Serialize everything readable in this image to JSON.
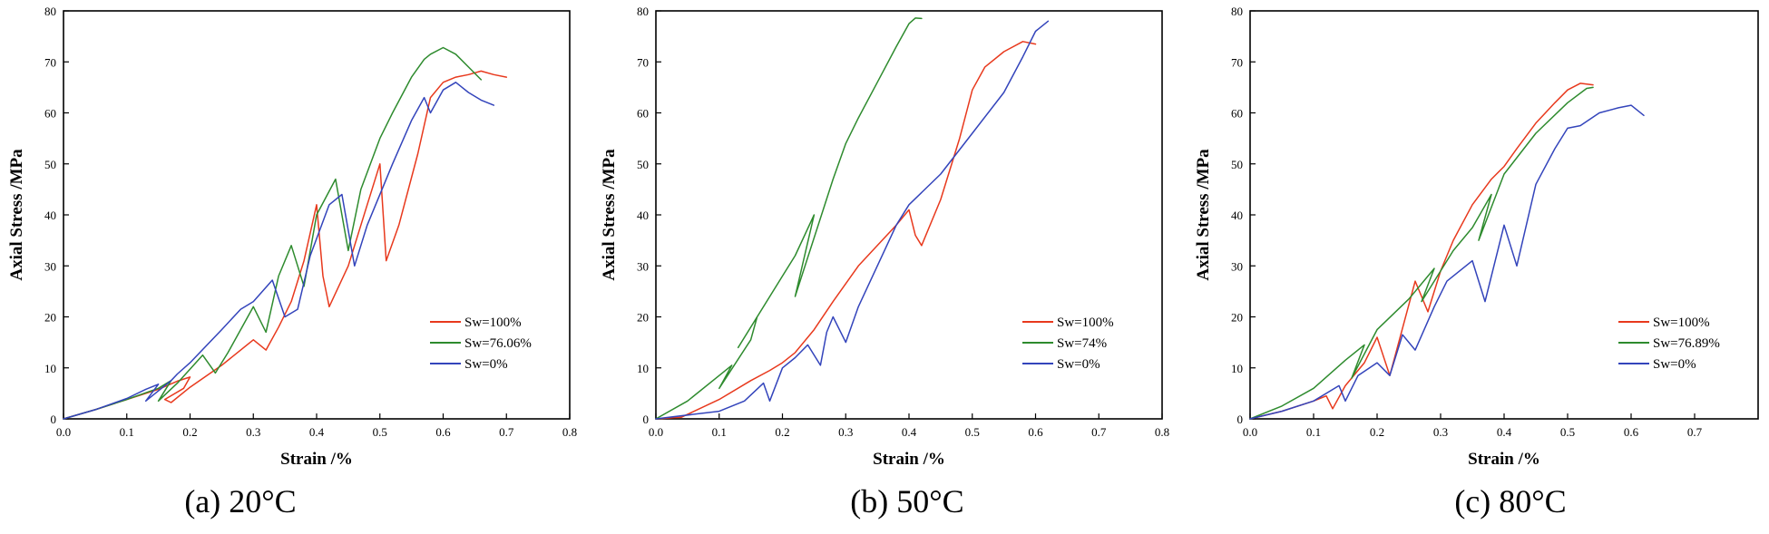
{
  "colors": {
    "red": "#E8391D",
    "green": "#2E8B2E",
    "blue": "#3344BB",
    "axis": "#000000"
  },
  "chart_data": [
    {
      "type": "line",
      "caption": "(a) 20°C",
      "xlabel": "Strain /%",
      "ylabel": "Axial Stress /MPa",
      "xlim": [
        0,
        0.8
      ],
      "ylim": [
        0,
        80
      ],
      "xticks": [
        "0.0",
        "0.1",
        "0.2",
        "0.3",
        "0.4",
        "0.5",
        "0.6",
        "0.7",
        "0.8"
      ],
      "yticks": [
        "0",
        "10",
        "20",
        "30",
        "40",
        "50",
        "60",
        "70",
        "80"
      ],
      "legend_position": "bottom-right",
      "series": [
        {
          "name": "Sw=100%",
          "color": "red",
          "x": [
            0,
            0.05,
            0.1,
            0.15,
            0.18,
            0.2,
            0.19,
            0.16,
            0.17,
            0.2,
            0.25,
            0.3,
            0.32,
            0.34,
            0.36,
            0.38,
            0.4,
            0.41,
            0.42,
            0.45,
            0.48,
            0.5,
            0.51,
            0.53,
            0.56,
            0.58,
            0.6,
            0.62,
            0.64,
            0.66,
            0.68,
            0.7
          ],
          "y": [
            0,
            1.8,
            3.8,
            5.8,
            7.4,
            8.2,
            6,
            3.8,
            3.2,
            6.2,
            10.5,
            15.5,
            13.5,
            18,
            23,
            31,
            42,
            28,
            22,
            30,
            42,
            50,
            31,
            38,
            52,
            63,
            66,
            67,
            67.5,
            68.2,
            67.5,
            67
          ]
        },
        {
          "name": "Sw=76.06%",
          "color": "green",
          "x": [
            0,
            0.05,
            0.1,
            0.15,
            0.17,
            0.15,
            0.18,
            0.22,
            0.24,
            0.26,
            0.3,
            0.32,
            0.34,
            0.36,
            0.38,
            0.4,
            0.43,
            0.45,
            0.47,
            0.5,
            0.52,
            0.55,
            0.57,
            0.58,
            0.6,
            0.62,
            0.64,
            0.66
          ],
          "y": [
            0,
            1.8,
            3.8,
            6,
            7.5,
            3.5,
            7,
            12.5,
            9,
            13,
            22,
            17,
            28,
            34,
            26,
            40,
            47,
            33,
            45,
            55,
            60,
            67,
            70.5,
            71.5,
            72.8,
            71.5,
            69,
            66.5
          ]
        },
        {
          "name": "Sw=0%",
          "color": "blue",
          "x": [
            0,
            0.05,
            0.1,
            0.13,
            0.15,
            0.13,
            0.17,
            0.18,
            0.2,
            0.25,
            0.28,
            0.3,
            0.33,
            0.35,
            0.37,
            0.39,
            0.42,
            0.44,
            0.46,
            0.48,
            0.52,
            0.55,
            0.57,
            0.58,
            0.6,
            0.62,
            0.64,
            0.66,
            0.68
          ],
          "y": [
            0,
            1.8,
            4,
            5.8,
            6.8,
            3.5,
            7.5,
            8.8,
            11,
            17.5,
            21.5,
            23,
            27.2,
            20,
            21.5,
            32,
            42,
            44,
            30,
            38,
            50,
            58.5,
            63,
            60,
            64.5,
            66,
            64,
            62.5,
            61.5
          ]
        }
      ]
    },
    {
      "type": "line",
      "caption": "(b) 50°C",
      "xlabel": "Strain /%",
      "ylabel": "Axial Stress /MPa",
      "xlim": [
        0,
        0.8
      ],
      "ylim": [
        0,
        80
      ],
      "xticks": [
        "0.0",
        "0.1",
        "0.2",
        "0.3",
        "0.4",
        "0.5",
        "0.6",
        "0.7",
        "0.8"
      ],
      "yticks": [
        "0",
        "10",
        "20",
        "30",
        "40",
        "50",
        "60",
        "70",
        "80"
      ],
      "legend_position": "bottom-right",
      "series": [
        {
          "name": "Sw=100%",
          "color": "red",
          "x": [
            0,
            0.04,
            0.1,
            0.15,
            0.18,
            0.2,
            0.22,
            0.25,
            0.28,
            0.32,
            0.35,
            0.38,
            0.4,
            0.41,
            0.42,
            0.45,
            0.48,
            0.5,
            0.52,
            0.55,
            0.58,
            0.6
          ],
          "y": [
            0,
            0.3,
            3.8,
            7.5,
            9.5,
            11,
            13,
            17.5,
            23,
            30,
            34,
            38,
            41,
            36,
            34,
            43,
            55,
            64.5,
            69,
            72,
            74,
            73.5
          ]
        },
        {
          "name": "Sw=74%",
          "color": "green",
          "x": [
            0,
            0.05,
            0.1,
            0.12,
            0.1,
            0.15,
            0.16,
            0.13,
            0.2,
            0.22,
            0.25,
            0.22,
            0.28,
            0.3,
            0.32,
            0.35,
            0.38,
            0.4,
            0.41,
            0.42
          ],
          "y": [
            0,
            3.5,
            8.5,
            10.5,
            6,
            15.5,
            20,
            14,
            28,
            32,
            40,
            24,
            47,
            54,
            59,
            66,
            73,
            77.5,
            78.6,
            78.5
          ]
        },
        {
          "name": "Sw=0%",
          "color": "blue",
          "x": [
            0,
            0.1,
            0.14,
            0.17,
            0.18,
            0.2,
            0.22,
            0.24,
            0.26,
            0.27,
            0.28,
            0.3,
            0.32,
            0.35,
            0.38,
            0.4,
            0.45,
            0.5,
            0.55,
            0.58,
            0.6,
            0.62
          ],
          "y": [
            0,
            1.5,
            3.5,
            7,
            3.5,
            10,
            12,
            14.5,
            10.5,
            17,
            20,
            15,
            22,
            30,
            38,
            42,
            48,
            56,
            64,
            71,
            76,
            78
          ]
        }
      ]
    },
    {
      "type": "line",
      "caption": "(c) 80°C",
      "xlabel": "Strain /%",
      "ylabel": "Axial Stress /MPa",
      "xlim": [
        0,
        0.8
      ],
      "ylim": [
        0,
        80
      ],
      "xticks": [
        "0.0",
        "0.1",
        "0.2",
        "0.3",
        "0.4",
        "0.5",
        "0.6",
        "0.7"
      ],
      "yticks": [
        "0",
        "10",
        "20",
        "30",
        "40",
        "50",
        "60",
        "70",
        "80"
      ],
      "legend_position": "bottom-right",
      "series": [
        {
          "name": "Sw=100%",
          "color": "red",
          "x": [
            0,
            0.05,
            0.1,
            0.12,
            0.13,
            0.15,
            0.18,
            0.2,
            0.22,
            0.26,
            0.28,
            0.3,
            0.32,
            0.35,
            0.38,
            0.4,
            0.42,
            0.45,
            0.48,
            0.5,
            0.52,
            0.54
          ],
          "y": [
            0,
            1.5,
            3.5,
            4.5,
            2,
            6.5,
            11,
            16,
            8.5,
            27,
            21,
            29,
            35,
            42,
            47,
            49.5,
            53,
            58,
            62,
            64.5,
            65.8,
            65.5
          ]
        },
        {
          "name": "Sw=76.89%",
          "color": "green",
          "x": [
            0,
            0.05,
            0.1,
            0.15,
            0.18,
            0.16,
            0.2,
            0.25,
            0.29,
            0.27,
            0.32,
            0.35,
            0.38,
            0.36,
            0.4,
            0.45,
            0.5,
            0.53,
            0.54
          ],
          "y": [
            0,
            2.5,
            6,
            11.5,
            14.5,
            8,
            17.5,
            23.5,
            29.5,
            23,
            33,
            37.5,
            44,
            35,
            48,
            56,
            62,
            64.8,
            65
          ]
        },
        {
          "name": "Sw=0%",
          "color": "blue",
          "x": [
            0,
            0.05,
            0.1,
            0.14,
            0.15,
            0.17,
            0.2,
            0.22,
            0.24,
            0.26,
            0.29,
            0.31,
            0.35,
            0.37,
            0.4,
            0.42,
            0.45,
            0.48,
            0.5,
            0.52,
            0.55,
            0.58,
            0.6,
            0.62
          ],
          "y": [
            0,
            1.5,
            3.5,
            6.5,
            3.5,
            8.5,
            11,
            8.5,
            16.5,
            13.5,
            22,
            27,
            31,
            23,
            38,
            30,
            46,
            53,
            57,
            57.5,
            60,
            61,
            61.5,
            59.5
          ]
        }
      ]
    }
  ]
}
